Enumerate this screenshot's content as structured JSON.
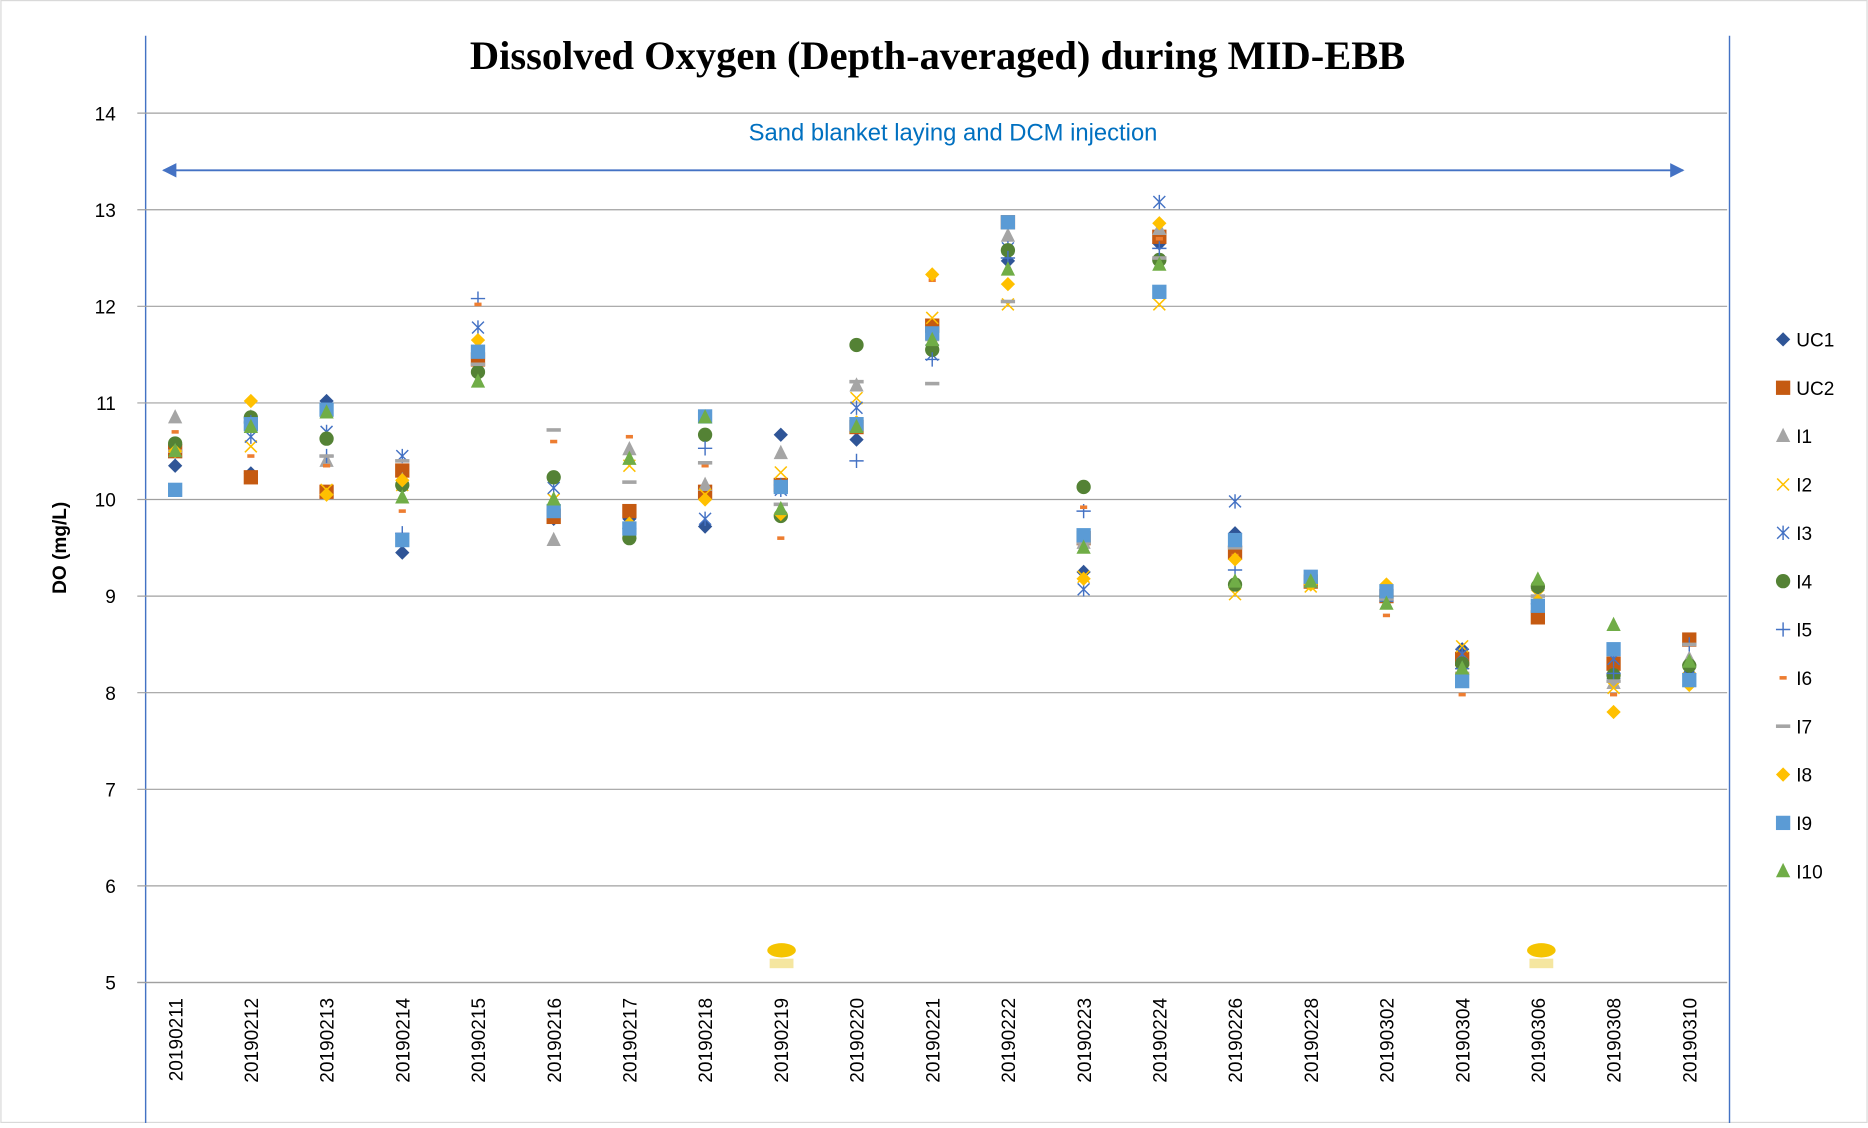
{
  "chart_data": {
    "type": "scatter",
    "title": "Dissolved Oxygen (Depth-averaged) during MID-EBB",
    "annotation": "Sand blanket laying and DCM injection",
    "y_label": "DO (mg/L)",
    "categories": [
      "20190211",
      "20190212",
      "20190213",
      "20190214",
      "20190215",
      "20190216",
      "20190217",
      "20190218",
      "20190219",
      "20190220",
      "20190221",
      "20190222",
      "20190223",
      "20190224",
      "20190226",
      "20190228",
      "20190302",
      "20190304",
      "20190306",
      "20190308",
      "20190310"
    ],
    "ylim": [
      5,
      14
    ],
    "yticks": [
      5,
      6,
      7,
      8,
      9,
      10,
      11,
      12,
      13,
      14
    ],
    "grid": true,
    "legend": "right",
    "series": [
      {
        "name": "UC1",
        "color": "#2f5597",
        "marker": "diamond",
        "values": [
          10.35,
          10.27,
          11.02,
          9.45,
          11.45,
          9.8,
          9.8,
          9.72,
          10.67,
          10.62,
          11.6,
          12.47,
          9.25,
          12.65,
          9.65,
          9.18,
          9.0,
          8.45,
          9.08,
          8.15,
          8.2
        ]
      },
      {
        "name": "UC2",
        "color": "#c55a11",
        "marker": "square",
        "values": [
          10.5,
          10.23,
          10.08,
          10.3,
          11.45,
          9.82,
          9.88,
          10.08,
          10.15,
          10.75,
          11.8,
          12.87,
          9.6,
          12.72,
          9.45,
          9.15,
          9.0,
          8.35,
          8.78,
          8.3,
          8.55
        ]
      },
      {
        "name": "I1",
        "color": "#a5a5a5",
        "marker": "triangle",
        "values": [
          10.85,
          10.85,
          10.4,
          10.2,
          11.55,
          9.58,
          10.52,
          10.15,
          10.48,
          11.18,
          11.7,
          12.73,
          9.55,
          12.8,
          9.55,
          9.15,
          9.0,
          8.3,
          9.12,
          8.1,
          8.35
        ]
      },
      {
        "name": "I2",
        "color": "#ffc000",
        "marker": "x",
        "values": [
          10.55,
          10.55,
          10.1,
          10.15,
          11.6,
          10.0,
          10.35,
          10.05,
          10.28,
          11.05,
          11.88,
          12.02,
          9.2,
          12.02,
          9.02,
          9.1,
          9.05,
          8.48,
          9.0,
          8.05,
          8.15
        ]
      },
      {
        "name": "I3",
        "color": "#4472c4",
        "marker": "star",
        "values": [
          10.5,
          10.65,
          10.7,
          10.45,
          11.78,
          10.12,
          9.7,
          9.8,
          10.1,
          10.95,
          11.5,
          12.6,
          9.07,
          13.08,
          9.98,
          9.15,
          9.0,
          8.4,
          8.95,
          8.35,
          8.25
        ]
      },
      {
        "name": "I4",
        "color": "#548235",
        "marker": "circle",
        "values": [
          10.58,
          10.85,
          10.63,
          10.15,
          11.32,
          10.23,
          9.6,
          10.67,
          9.83,
          11.6,
          11.55,
          12.58,
          10.13,
          12.48,
          9.12,
          9.15,
          9.0,
          8.3,
          9.1,
          8.18,
          8.28
        ]
      },
      {
        "name": "I5",
        "color": "#4472c4",
        "marker": "plus",
        "values": [
          10.5,
          10.8,
          10.45,
          9.65,
          12.08,
          9.9,
          9.7,
          10.53,
          10.15,
          10.4,
          11.45,
          12.5,
          9.88,
          12.6,
          9.27,
          9.15,
          8.95,
          8.25,
          8.92,
          8.2,
          8.5
        ]
      },
      {
        "name": "I6",
        "color": "#ed7d31",
        "marker": "dash",
        "values": [
          10.7,
          10.45,
          10.35,
          9.88,
          12.02,
          10.6,
          10.65,
          10.35,
          9.6,
          10.8,
          12.27,
          12.22,
          9.92,
          12.7,
          9.42,
          9.12,
          8.8,
          7.98,
          8.85,
          7.98,
          8.3
        ]
      },
      {
        "name": "I7",
        "color": "#a5a5a5",
        "marker": "longdash",
        "values": [
          10.5,
          10.8,
          10.45,
          10.4,
          11.4,
          10.72,
          10.18,
          10.38,
          9.95,
          11.22,
          11.2,
          12.05,
          9.55,
          12.5,
          9.5,
          9.15,
          8.97,
          8.2,
          9.0,
          8.12,
          8.5
        ]
      },
      {
        "name": "I8",
        "color": "#ffc000",
        "marker": "diamond",
        "values": [
          10.5,
          11.02,
          10.05,
          10.2,
          11.65,
          9.9,
          9.75,
          10.0,
          9.85,
          10.8,
          12.33,
          12.23,
          9.18,
          12.86,
          9.38,
          9.12,
          9.12,
          8.2,
          8.95,
          7.8,
          8.08
        ]
      },
      {
        "name": "I9",
        "color": "#5b9bd5",
        "marker": "square",
        "values": [
          10.1,
          10.78,
          10.93,
          9.58,
          11.53,
          9.88,
          9.7,
          10.86,
          10.13,
          10.78,
          11.72,
          12.87,
          9.63,
          12.15,
          9.58,
          9.2,
          9.05,
          8.12,
          8.9,
          8.45,
          8.13
        ]
      },
      {
        "name": "I10",
        "color": "#70ad47",
        "marker": "triangle",
        "values": [
          10.5,
          10.75,
          10.9,
          10.02,
          11.22,
          10.0,
          10.42,
          10.85,
          9.9,
          10.75,
          11.65,
          12.38,
          9.5,
          12.43,
          9.15,
          9.15,
          8.92,
          8.25,
          9.17,
          8.7,
          8.32
        ]
      }
    ]
  }
}
